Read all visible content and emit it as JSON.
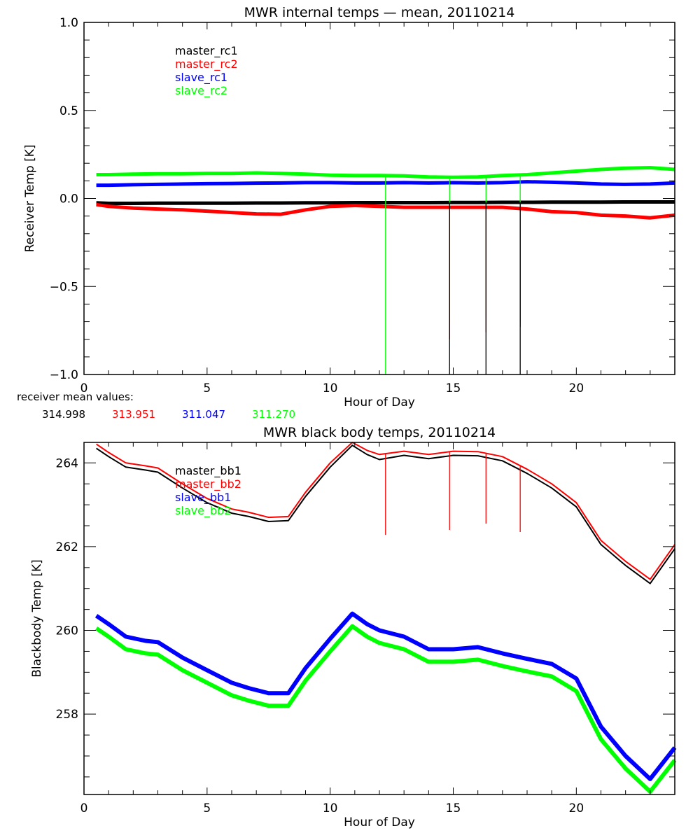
{
  "chart_data": [
    {
      "type": "line",
      "title": "MWR internal temps — mean, 20110214",
      "xlabel": "Hour of Day",
      "ylabel": "Receiver Temp [K]",
      "xlim": [
        0,
        24
      ],
      "ylim": [
        -1.0,
        1.0
      ],
      "xticks": [
        0,
        5,
        10,
        15,
        20
      ],
      "xtick_labels": [
        "0",
        "5",
        "10",
        "15",
        "20"
      ],
      "yticks": [
        -1.0,
        -0.5,
        0.0,
        0.5,
        1.0
      ],
      "ytick_labels": [
        "−1.0",
        "−0.5",
        "0.0",
        "0.5",
        "1.0"
      ],
      "grid": false,
      "legend_position": "top-left",
      "x": [
        0.5,
        1,
        2,
        3,
        4,
        5,
        6,
        7,
        8,
        9,
        10,
        11,
        12,
        13,
        14,
        15,
        16,
        17,
        18,
        19,
        20,
        21,
        22,
        23,
        24
      ],
      "series": [
        {
          "name": "master_rc1",
          "color": "#000000",
          "values": [
            -0.025,
            -0.028,
            -0.028,
            -0.027,
            -0.027,
            -0.027,
            -0.027,
            -0.026,
            -0.026,
            -0.025,
            -0.025,
            -0.024,
            -0.024,
            -0.024,
            -0.024,
            -0.023,
            -0.023,
            -0.022,
            -0.022,
            -0.021,
            -0.021,
            -0.021,
            -0.02,
            -0.02,
            -0.02
          ]
        },
        {
          "name": "master_rc2",
          "color": "#ff0000",
          "values": [
            -0.035,
            -0.045,
            -0.055,
            -0.06,
            -0.065,
            -0.072,
            -0.08,
            -0.088,
            -0.09,
            -0.065,
            -0.045,
            -0.04,
            -0.045,
            -0.05,
            -0.05,
            -0.05,
            -0.05,
            -0.05,
            -0.06,
            -0.075,
            -0.08,
            -0.095,
            -0.1,
            -0.11,
            -0.095
          ]
        },
        {
          "name": "slave_rc1",
          "color": "#0000ff",
          "values": [
            0.075,
            0.075,
            0.078,
            0.08,
            0.082,
            0.084,
            0.085,
            0.087,
            0.088,
            0.09,
            0.09,
            0.088,
            0.088,
            0.09,
            0.088,
            0.09,
            0.088,
            0.09,
            0.095,
            0.092,
            0.088,
            0.082,
            0.08,
            0.082,
            0.088
          ]
        },
        {
          "name": "slave_rc2",
          "color": "#00ff00",
          "values": [
            0.135,
            0.135,
            0.138,
            0.14,
            0.14,
            0.142,
            0.142,
            0.145,
            0.142,
            0.138,
            0.132,
            0.13,
            0.13,
            0.128,
            0.122,
            0.12,
            0.122,
            0.13,
            0.135,
            0.145,
            0.155,
            0.165,
            0.172,
            0.175,
            0.165
          ]
        }
      ],
      "spikes": [
        {
          "x": 12.25,
          "series": "slave_rc2",
          "to": -1.0
        },
        {
          "x": 14.85,
          "series": "slave_rc2",
          "to": -0.7
        },
        {
          "x": 14.85,
          "series": "master_rc2",
          "to": -0.8
        },
        {
          "x": 14.85,
          "series": "master_rc1",
          "to": -1.0
        },
        {
          "x": 16.33,
          "series": "slave_rc2",
          "to": -0.67
        },
        {
          "x": 16.33,
          "series": "master_rc2",
          "to": -0.76
        },
        {
          "x": 16.33,
          "series": "master_rc1",
          "to": -1.0
        },
        {
          "x": 17.72,
          "series": "slave_rc2",
          "to": -0.7
        },
        {
          "x": 17.72,
          "series": "master_rc2",
          "to": -0.73
        },
        {
          "x": 17.72,
          "series": "master_rc1",
          "to": -1.0
        }
      ]
    },
    {
      "type": "line",
      "title": "MWR black body temps, 20110214",
      "xlabel": "Hour of Day",
      "ylabel": "Blackbody Temp [K]",
      "xlim": [
        0,
        24
      ],
      "ylim": [
        256.08,
        264.49
      ],
      "xticks": [
        0,
        5,
        10,
        15,
        20
      ],
      "xtick_labels": [
        "0",
        "5",
        "10",
        "15",
        "20"
      ],
      "yticks": [
        258,
        260,
        262,
        264
      ],
      "ytick_labels": [
        "258",
        "260",
        "262",
        "264"
      ],
      "grid": false,
      "legend_position": "top-left",
      "x": [
        0.5,
        1,
        1.7,
        2.5,
        3,
        4,
        5,
        6,
        6.7,
        7.5,
        8.3,
        9,
        10,
        10.9,
        11.5,
        12,
        13,
        14,
        15,
        16,
        17,
        18,
        19,
        20,
        21,
        22,
        23,
        24
      ],
      "series": [
        {
          "name": "master_bb1",
          "color": "#000000",
          "values": [
            264.35,
            264.15,
            263.9,
            263.83,
            263.78,
            263.4,
            263.05,
            262.8,
            262.72,
            262.6,
            262.62,
            263.2,
            263.9,
            264.42,
            264.2,
            264.08,
            264.18,
            264.1,
            264.18,
            264.17,
            264.05,
            263.75,
            263.4,
            262.95,
            262.05,
            261.55,
            261.12,
            261.95
          ]
        },
        {
          "name": "master_bb2",
          "color": "#ff0000",
          "values": [
            264.45,
            264.25,
            264.0,
            263.93,
            263.88,
            263.5,
            263.15,
            262.9,
            262.82,
            262.7,
            262.72,
            263.3,
            264.0,
            264.52,
            264.3,
            264.2,
            264.28,
            264.2,
            264.28,
            264.27,
            264.15,
            263.85,
            263.5,
            263.05,
            262.15,
            261.65,
            261.22,
            262.05
          ]
        },
        {
          "name": "slave_bb1",
          "color": "#0000ff",
          "values": [
            260.35,
            260.15,
            259.85,
            259.75,
            259.72,
            259.35,
            259.05,
            258.75,
            258.62,
            258.5,
            258.5,
            259.1,
            259.8,
            260.4,
            260.15,
            260.0,
            259.85,
            259.55,
            259.55,
            259.6,
            259.45,
            259.32,
            259.2,
            258.85,
            257.7,
            257.0,
            256.45,
            257.2
          ]
        },
        {
          "name": "slave_bb2",
          "color": "#00ff00",
          "values": [
            260.05,
            259.85,
            259.55,
            259.45,
            259.42,
            259.05,
            258.75,
            258.45,
            258.32,
            258.2,
            258.2,
            258.8,
            259.5,
            260.1,
            259.85,
            259.7,
            259.55,
            259.25,
            259.25,
            259.3,
            259.15,
            259.02,
            258.9,
            258.55,
            257.4,
            256.7,
            256.15,
            256.9
          ]
        }
      ],
      "spikes": [
        {
          "x": 12.25,
          "series": "master_bb2",
          "to": 262.28
        },
        {
          "x": 14.85,
          "series": "master_bb2",
          "to": 262.4
        },
        {
          "x": 16.33,
          "series": "master_bb2",
          "to": 262.55
        },
        {
          "x": 17.72,
          "series": "master_bb2",
          "to": 262.35
        }
      ]
    }
  ],
  "annotation": {
    "label": "receiver mean values:",
    "values": [
      {
        "text": "314.998",
        "color": "#000000"
      },
      {
        "text": "313.951",
        "color": "#ff0000"
      },
      {
        "text": "311.047",
        "color": "#0000ff"
      },
      {
        "text": "311.270",
        "color": "#00ff00"
      }
    ]
  }
}
